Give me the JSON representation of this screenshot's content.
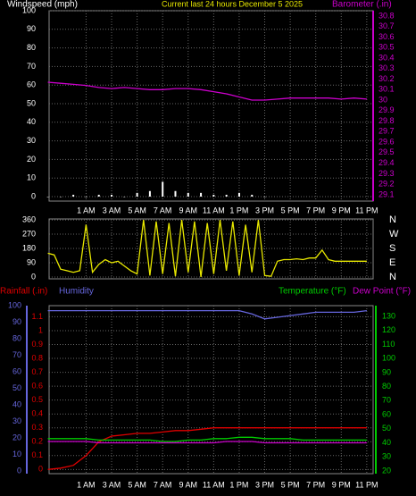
{
  "chart_data": [
    {
      "type": "line",
      "title": "Current last 24 hours December 5 2025",
      "x": [
        -2,
        -1,
        0,
        1,
        2,
        3,
        4,
        5,
        6,
        7,
        8,
        9,
        10,
        11,
        12,
        13,
        14,
        15,
        16,
        17,
        18,
        19,
        20,
        21,
        22,
        23
      ],
      "xlim": [
        -1.9,
        23.5
      ],
      "xticks": [
        {
          "value": 1,
          "label": "1 AM"
        },
        {
          "value": 3,
          "label": "3 AM"
        },
        {
          "value": 5,
          "label": "5 AM"
        },
        {
          "value": 7,
          "label": "7 AM"
        },
        {
          "value": 9,
          "label": "9 AM"
        },
        {
          "value": 11,
          "label": "11 AM"
        },
        {
          "value": 13,
          "label": "1 PM"
        },
        {
          "value": 15,
          "label": "3 PM"
        },
        {
          "value": 17,
          "label": "5 PM"
        },
        {
          "value": 19,
          "label": "7 PM"
        },
        {
          "value": 21,
          "label": "9 PM"
        },
        {
          "value": 23,
          "label": "11 PM"
        }
      ],
      "ylim": [
        -2.4,
        100
      ],
      "yticks": [
        0,
        10,
        20,
        30,
        40,
        50,
        60,
        70,
        80,
        90,
        100
      ],
      "y2lim": [
        29.04,
        30.85
      ],
      "y2ticks": [
        29.1,
        29.2,
        29.3,
        29.4,
        29.5,
        29.6,
        29.7,
        29.8,
        29.9,
        30,
        30.1,
        30.2,
        30.3,
        30.4,
        30.5,
        30.6,
        30.7,
        30.8
      ],
      "grid": true,
      "series": [
        {
          "name": "Windspeed (mph)",
          "type": "bar",
          "color": "#ffffff",
          "values": [
            0,
            0,
            1,
            0,
            1,
            1,
            0,
            2,
            3,
            8,
            3,
            2,
            2,
            1,
            1,
            2,
            1,
            0,
            null,
            null,
            null,
            null,
            null,
            null,
            null,
            null
          ]
        },
        {
          "name": "Barometer (.in)",
          "type": "line",
          "axis": "y2",
          "color": "#cc00cc",
          "values": [
            30.17,
            30.16,
            30.15,
            30.14,
            30.12,
            30.11,
            30.12,
            30.11,
            30.1,
            30.1,
            30.11,
            30.11,
            30.1,
            30.08,
            30.06,
            30.03,
            30.0,
            30.0,
            30.01,
            30.02,
            30.02,
            30.02,
            30.02,
            30.01,
            30.02,
            30.01
          ]
        }
      ]
    },
    {
      "type": "line",
      "x": [
        -2,
        -1.5,
        -1,
        -0.5,
        0,
        0.5,
        1,
        1.5,
        2,
        2.5,
        3,
        3.5,
        4,
        4.5,
        5,
        5.5,
        6,
        6.5,
        7,
        7.5,
        8,
        8.5,
        9,
        9.5,
        10,
        10.5,
        11,
        11.5,
        12,
        12.5,
        13,
        13.5,
        14,
        14.5,
        15,
        15.5,
        16,
        16.5,
        17,
        17.5,
        18,
        18.5,
        19,
        19.5,
        20,
        20.5,
        21,
        21.5,
        22,
        22.5,
        23
      ],
      "xlim": [
        -1.9,
        23.5
      ],
      "ylim": [
        -11,
        366
      ],
      "yticks": [
        0,
        90,
        180,
        270,
        360
      ],
      "y2lim": [
        -11,
        366
      ],
      "y2ticks": [
        {
          "value": 360,
          "label": "N"
        },
        {
          "value": 270,
          "label": "W"
        },
        {
          "value": 180,
          "label": "S"
        },
        {
          "value": 90,
          "label": "E"
        },
        {
          "value": 0,
          "label": "N"
        }
      ],
      "grid": true,
      "series": [
        {
          "type": "line",
          "color": "#e8e800",
          "values": [
            150,
            140,
            50,
            40,
            30,
            40,
            330,
            30,
            80,
            110,
            90,
            100,
            70,
            40,
            20,
            360,
            10,
            350,
            20,
            340,
            5,
            360,
            30,
            350,
            0,
            340,
            20,
            360,
            40,
            350,
            10,
            330,
            30,
            360,
            10,
            5,
            100,
            110,
            110,
            115,
            110,
            120,
            120,
            170,
            110,
            100,
            100,
            100,
            100,
            100,
            100
          ]
        }
      ]
    },
    {
      "type": "line",
      "x": [
        -2,
        -1,
        0,
        1,
        2,
        3,
        4,
        5,
        6,
        7,
        8,
        9,
        10,
        11,
        12,
        13,
        14,
        15,
        16,
        17,
        18,
        19,
        20,
        21,
        22,
        23
      ],
      "xlim": [
        -1.9,
        23.5
      ],
      "xticks": [
        {
          "value": 1,
          "label": "1 AM"
        },
        {
          "value": 3,
          "label": "3 AM"
        },
        {
          "value": 5,
          "label": "5 AM"
        },
        {
          "value": 7,
          "label": "7 AM"
        },
        {
          "value": 9,
          "label": "9 AM"
        },
        {
          "value": 11,
          "label": "11 AM"
        },
        {
          "value": 13,
          "label": "1 PM"
        },
        {
          "value": 15,
          "label": "3 PM"
        },
        {
          "value": 17,
          "label": "5 PM"
        },
        {
          "value": 19,
          "label": "7 PM"
        },
        {
          "value": 21,
          "label": "9 PM"
        },
        {
          "value": 23,
          "label": "11 PM"
        }
      ],
      "ylim": [
        -0.03,
        1.18
      ],
      "yticks": [
        0,
        0.1,
        0.2,
        0.3,
        0.4,
        0.5,
        0.6,
        0.7,
        0.8,
        0.9,
        1,
        1.1
      ],
      "y2lim": [
        18.1,
        137.6
      ],
      "y2ticks": [
        20,
        30,
        40,
        50,
        60,
        70,
        80,
        90,
        100,
        110,
        120,
        130
      ],
      "y3lim": [
        -1.6,
        100
      ],
      "y3ticks": [
        0,
        10,
        20,
        30,
        40,
        50,
        60,
        70,
        80,
        90,
        100
      ],
      "grid": true,
      "series": [
        {
          "name": "Rainfall (.in)",
          "type": "line",
          "color": "#e00000",
          "values": [
            0,
            0.01,
            0.03,
            0.1,
            0.2,
            0.24,
            0.25,
            0.26,
            0.26,
            0.27,
            0.28,
            0.28,
            0.29,
            0.3,
            0.3,
            0.3,
            0.3,
            0.3,
            0.3,
            0.3,
            0.3,
            0.3,
            0.3,
            0.3,
            0.3,
            0.3
          ]
        },
        {
          "name": "Humidity",
          "type": "line",
          "axis": "y3",
          "color": "#6666dd",
          "values": [
            97,
            97,
            97,
            97,
            97,
            97,
            97,
            97,
            97,
            97,
            97,
            97,
            97,
            97,
            97,
            97,
            95,
            92,
            93,
            94,
            95,
            96,
            96,
            96,
            96,
            97
          ]
        },
        {
          "name": "Temperature (°F)",
          "type": "line",
          "axis": "y2",
          "color": "#00cc00",
          "values": [
            43,
            43,
            43,
            43,
            42,
            42,
            42,
            42,
            42,
            41,
            41,
            42,
            42,
            43,
            43,
            44,
            44,
            43,
            43,
            43,
            42,
            42,
            42,
            42,
            42,
            42
          ]
        },
        {
          "name": "Dew Point (°F)",
          "type": "line",
          "axis": "y2",
          "color": "#cc00cc",
          "values": [
            41,
            41,
            41,
            41,
            40,
            40,
            40,
            40,
            40,
            40,
            40,
            40,
            40,
            40,
            41,
            41,
            41,
            40,
            40,
            40,
            40,
            40,
            40,
            40,
            40,
            40
          ]
        }
      ]
    }
  ]
}
